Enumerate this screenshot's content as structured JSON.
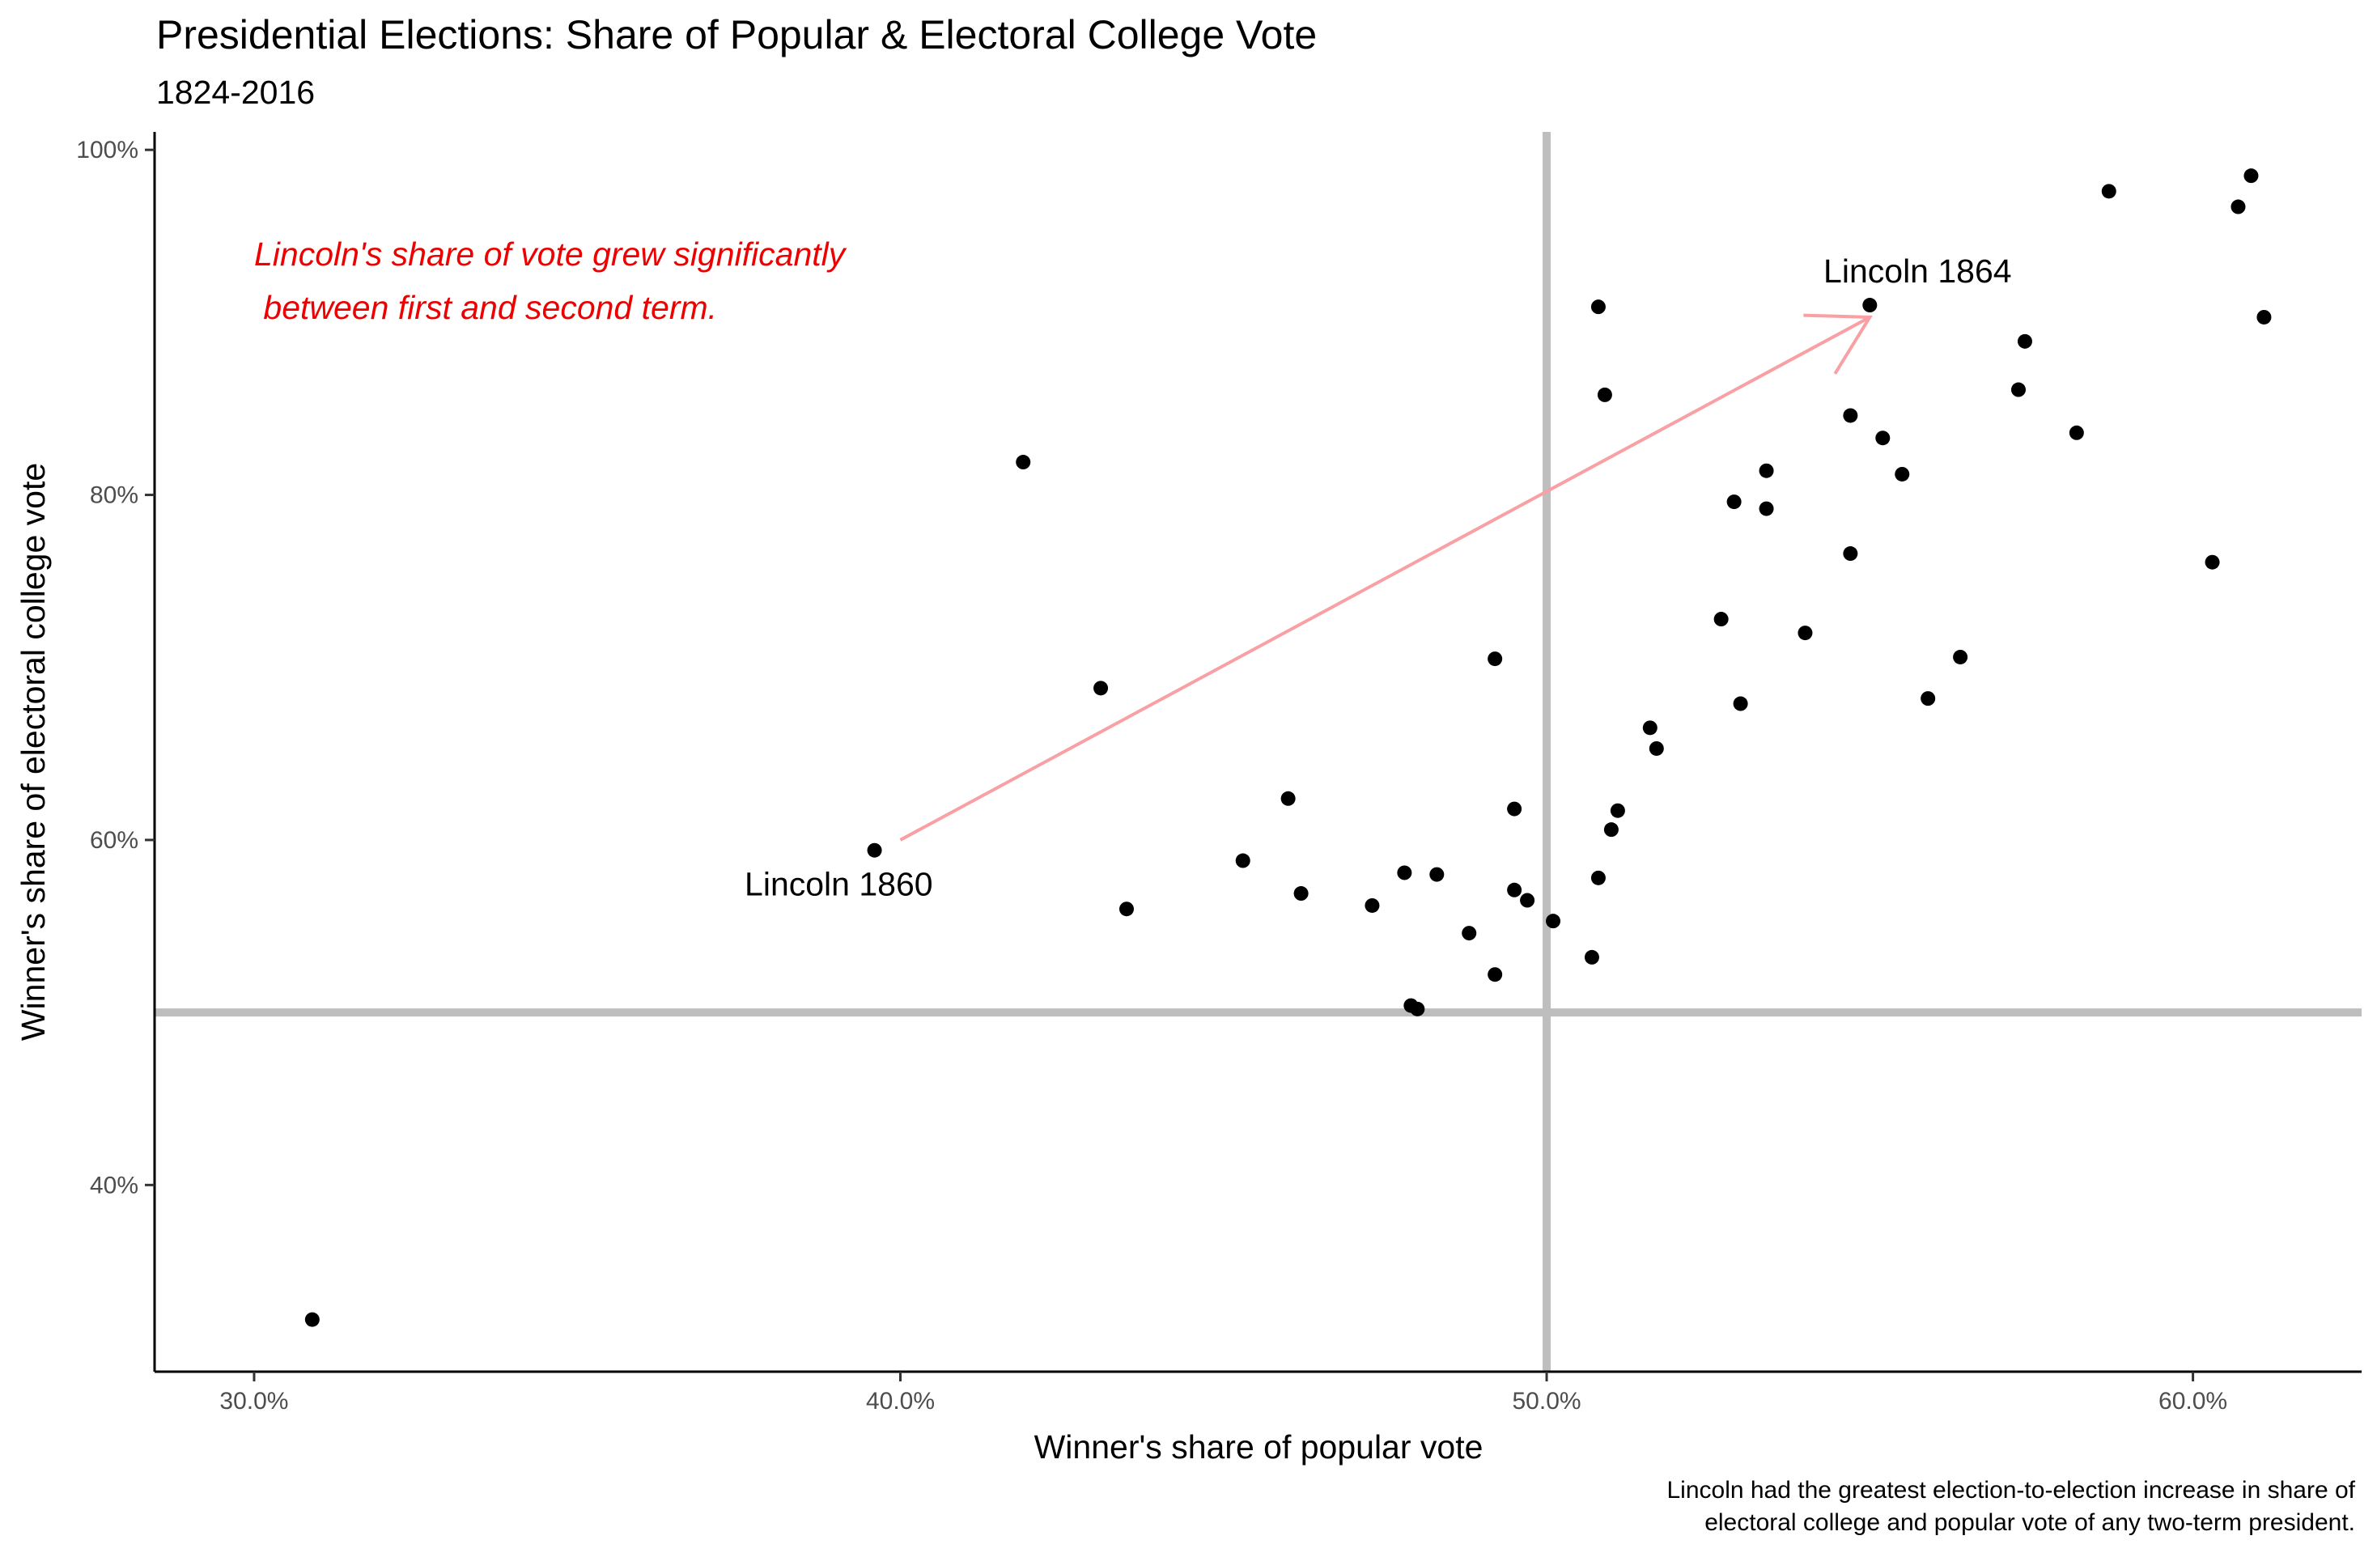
{
  "chart_data": {
    "type": "scatter",
    "title": "Presidential Elections: Share of Popular & Electoral College Vote",
    "subtitle": "1824-2016",
    "xlabel": "Winner's share of popular vote",
    "ylabel": "Winner's share of electoral college vote",
    "xlim": [
      0.2846,
      0.6261
    ],
    "ylim": [
      0.2918,
      1.0104
    ],
    "x_ticks": [
      {
        "value": 0.3,
        "label": "30.0%"
      },
      {
        "value": 0.4,
        "label": "40.0%"
      },
      {
        "value": 0.5,
        "label": "50.0%"
      },
      {
        "value": 0.6,
        "label": "60.0%"
      }
    ],
    "y_ticks": [
      {
        "value": 0.4,
        "label": "40%"
      },
      {
        "value": 0.6,
        "label": "60%"
      },
      {
        "value": 0.8,
        "label": "80%"
      },
      {
        "value": 1.0,
        "label": "100%"
      }
    ],
    "reference_lines": {
      "x": 0.5,
      "y": 0.5,
      "color": "#bebebe"
    },
    "grid": false,
    "legend": "none",
    "point_color": "#000000",
    "points": [
      {
        "x": 0.309,
        "y": 0.322
      },
      {
        "x": 0.396,
        "y": 0.594
      },
      {
        "x": 0.419,
        "y": 0.819
      },
      {
        "x": 0.431,
        "y": 0.688
      },
      {
        "x": 0.435,
        "y": 0.56
      },
      {
        "x": 0.453,
        "y": 0.588
      },
      {
        "x": 0.46,
        "y": 0.624
      },
      {
        "x": 0.462,
        "y": 0.569
      },
      {
        "x": 0.473,
        "y": 0.562
      },
      {
        "x": 0.478,
        "y": 0.581
      },
      {
        "x": 0.479,
        "y": 0.504
      },
      {
        "x": 0.48,
        "y": 0.502
      },
      {
        "x": 0.483,
        "y": 0.58
      },
      {
        "x": 0.488,
        "y": 0.546
      },
      {
        "x": 0.492,
        "y": 0.705
      },
      {
        "x": 0.492,
        "y": 0.522
      },
      {
        "x": 0.495,
        "y": 0.618
      },
      {
        "x": 0.495,
        "y": 0.571
      },
      {
        "x": 0.497,
        "y": 0.565
      },
      {
        "x": 0.501,
        "y": 0.553
      },
      {
        "x": 0.507,
        "y": 0.532
      },
      {
        "x": 0.508,
        "y": 0.909
      },
      {
        "x": 0.508,
        "y": 0.578
      },
      {
        "x": 0.509,
        "y": 0.858
      },
      {
        "x": 0.51,
        "y": 0.606
      },
      {
        "x": 0.511,
        "y": 0.617
      },
      {
        "x": 0.516,
        "y": 0.665
      },
      {
        "x": 0.517,
        "y": 0.653
      },
      {
        "x": 0.527,
        "y": 0.728
      },
      {
        "x": 0.529,
        "y": 0.796
      },
      {
        "x": 0.53,
        "y": 0.679
      },
      {
        "x": 0.534,
        "y": 0.814
      },
      {
        "x": 0.534,
        "y": 0.792
      },
      {
        "x": 0.54,
        "y": 0.72
      },
      {
        "x": 0.547,
        "y": 0.846
      },
      {
        "x": 0.547,
        "y": 0.766
      },
      {
        "x": 0.55,
        "y": 0.91
      },
      {
        "x": 0.552,
        "y": 0.833
      },
      {
        "x": 0.555,
        "y": 0.812
      },
      {
        "x": 0.559,
        "y": 0.682
      },
      {
        "x": 0.564,
        "y": 0.706
      },
      {
        "x": 0.573,
        "y": 0.861
      },
      {
        "x": 0.574,
        "y": 0.889
      },
      {
        "x": 0.582,
        "y": 0.836
      },
      {
        "x": 0.587,
        "y": 0.976
      },
      {
        "x": 0.603,
        "y": 0.761
      },
      {
        "x": 0.607,
        "y": 0.967
      },
      {
        "x": 0.609,
        "y": 0.985
      },
      {
        "x": 0.611,
        "y": 0.903
      }
    ],
    "labels": [
      {
        "text": "Lincoln 1860",
        "x": 0.396,
        "y": 0.594,
        "anchor": "end"
      },
      {
        "text": "Lincoln 1864",
        "x": 0.55,
        "y": 0.91,
        "anchor": "middle"
      }
    ],
    "arrow": {
      "from": {
        "x": 0.4,
        "y": 0.6
      },
      "to": {
        "x": 0.55,
        "y": 0.903
      },
      "color": "#f8a0a4"
    },
    "annotation": {
      "lines": [
        "Lincoln's share of vote grew significantly",
        " between first and second term."
      ],
      "color": "#ee0000"
    },
    "caption": [
      "Lincoln had the greatest election-to-election increase in share of",
      "electoral college and popular vote of any two-term president."
    ]
  }
}
